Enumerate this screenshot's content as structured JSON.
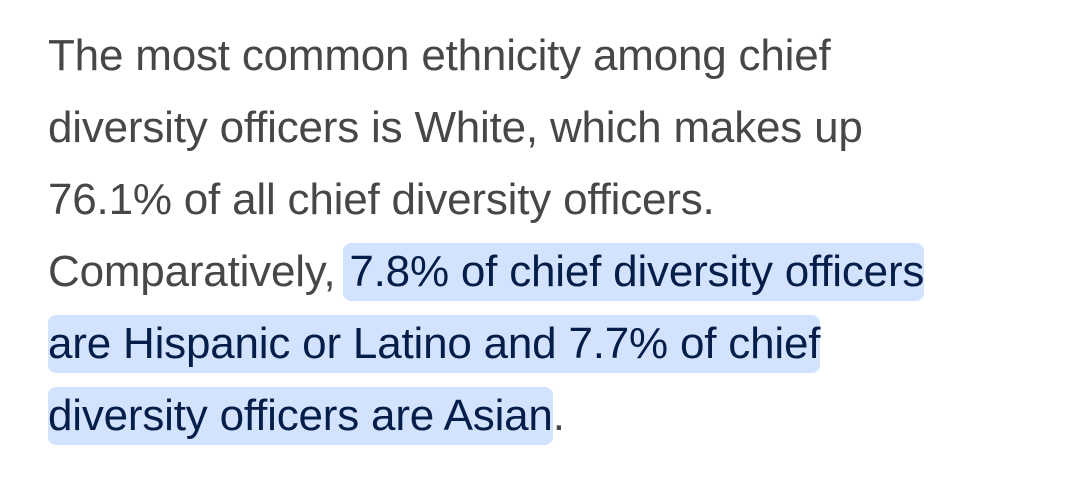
{
  "answer": {
    "lines": [
      "The most common ethnicity among chief",
      "diversity officers is White, which makes up",
      "76.1% of all chief diversity officers."
    ],
    "line4_plain": "Comparatively,",
    "line4_highlight": "7.8% of chief diversity officers",
    "line5_highlight": "are Hispanic or Latino and 7.7% of chief",
    "line6_highlight": "diversity officers are Asian",
    "line6_tail": ".",
    "highlight_color": "#d3e3fd",
    "highlight_text_color": "#041e49",
    "text_color": "#474747"
  }
}
